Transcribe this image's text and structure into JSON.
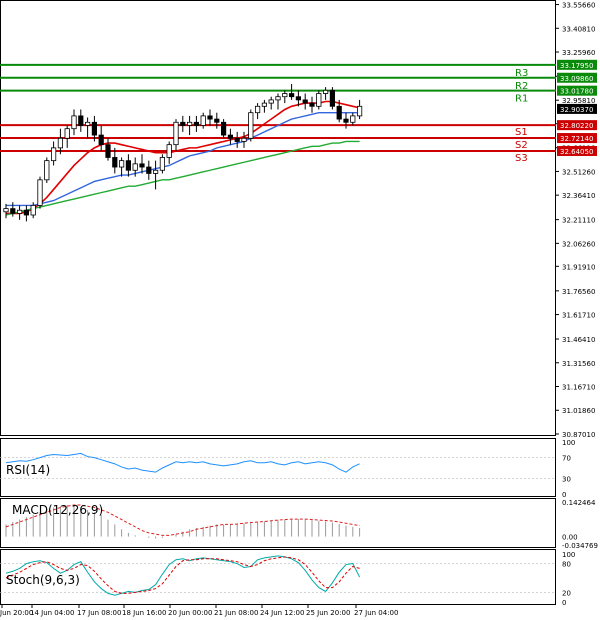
{
  "colors": {
    "up_candle": "#1a8a1a",
    "down_candle": "#d10000",
    "ma_fast": "#e00000",
    "ma_mid": "#3366dd",
    "ma_slow": "#22aa33",
    "resistance": "#0a8a0a",
    "support": "#cc0000",
    "rsi": "#1e90ff",
    "macd_signal": "#dd2222",
    "stoch_main": "#00aaaa",
    "stoch_signal": "#dd0000",
    "frame": "#000000",
    "price_tag_bg": "#000000"
  },
  "chart_data": [
    {
      "type": "candlestick",
      "ylim": [
        30.87,
        33.56
      ],
      "price_ticks": [
        "33.55660",
        "33.40810",
        "33.25960",
        "33.10800",
        "32.95810",
        "32.81120",
        "32.66110",
        "32.51260",
        "32.36410",
        "32.21110",
        "32.06260",
        "31.91910",
        "31.76560",
        "31.61710",
        "31.46410",
        "31.31560",
        "31.16710",
        "31.01860",
        "30.87010"
      ],
      "time_labels": [
        "Jun 20:00",
        "14 Jun 04:00",
        "17 Jun 08:00",
        "18 Jun 16:00",
        "20 Jun 00:00",
        "21 Jun 08:00",
        "24 Jun 12:00",
        "25 Jun 20:00",
        "27 Jun 04:00"
      ],
      "current_price": "32.90370",
      "levels": [
        {
          "name": "R3",
          "value": 33.1795,
          "tag": "33.17950",
          "kind": "resistance"
        },
        {
          "name": "R2",
          "value": 33.0986,
          "tag": "33.09860",
          "kind": "resistance"
        },
        {
          "name": "R1",
          "value": 33.0178,
          "tag": "33.01780",
          "kind": "resistance"
        },
        {
          "name": "S1",
          "value": 32.8022,
          "tag": "32.80220",
          "kind": "support"
        },
        {
          "name": "S2",
          "value": 32.7214,
          "tag": "32.72140",
          "kind": "support"
        },
        {
          "name": "S3",
          "value": 32.6405,
          "tag": "32.64050",
          "kind": "support"
        }
      ],
      "candles": [
        [
          32.26,
          32.31,
          32.22,
          32.28
        ],
        [
          32.28,
          32.32,
          32.23,
          32.25
        ],
        [
          32.25,
          32.3,
          32.21,
          32.27
        ],
        [
          32.27,
          32.3,
          32.2,
          32.24
        ],
        [
          32.24,
          32.32,
          32.22,
          32.3
        ],
        [
          32.3,
          32.48,
          32.28,
          32.46
        ],
        [
          32.46,
          32.6,
          32.44,
          32.58
        ],
        [
          32.58,
          32.7,
          32.55,
          32.66
        ],
        [
          32.66,
          32.78,
          32.62,
          32.72
        ],
        [
          32.72,
          32.8,
          32.66,
          32.78
        ],
        [
          32.78,
          32.9,
          32.74,
          32.86
        ],
        [
          32.86,
          32.9,
          32.76,
          32.8
        ],
        [
          32.8,
          32.85,
          32.72,
          32.82
        ],
        [
          32.82,
          32.86,
          32.7,
          32.74
        ],
        [
          32.74,
          32.8,
          32.64,
          32.68
        ],
        [
          32.68,
          32.72,
          32.58,
          32.6
        ],
        [
          32.6,
          32.66,
          32.5,
          32.54
        ],
        [
          32.54,
          32.6,
          32.48,
          32.58
        ],
        [
          32.58,
          32.62,
          32.48,
          32.52
        ],
        [
          32.52,
          32.6,
          32.48,
          32.56
        ],
        [
          32.56,
          32.62,
          32.5,
          32.54
        ],
        [
          32.54,
          32.58,
          32.46,
          32.5
        ],
        [
          32.5,
          32.58,
          32.4,
          32.52
        ],
        [
          32.52,
          32.62,
          32.5,
          32.6
        ],
        [
          32.6,
          32.7,
          32.56,
          32.68
        ],
        [
          32.68,
          32.84,
          32.64,
          32.82
        ],
        [
          32.82,
          32.86,
          32.76,
          32.8
        ],
        [
          32.8,
          32.86,
          32.74,
          32.82
        ],
        [
          32.82,
          32.86,
          32.76,
          32.8
        ],
        [
          32.8,
          32.88,
          32.78,
          32.86
        ],
        [
          32.86,
          32.9,
          32.8,
          32.84
        ],
        [
          32.84,
          32.88,
          32.78,
          32.82
        ],
        [
          32.82,
          32.84,
          32.72,
          32.74
        ],
        [
          32.74,
          32.78,
          32.68,
          32.72
        ],
        [
          32.72,
          32.76,
          32.66,
          32.7
        ],
        [
          32.7,
          32.76,
          32.66,
          32.72
        ],
        [
          32.72,
          32.9,
          32.7,
          32.88
        ],
        [
          32.88,
          32.94,
          32.84,
          32.92
        ],
        [
          32.92,
          32.96,
          32.88,
          32.94
        ],
        [
          32.94,
          32.98,
          32.9,
          32.96
        ],
        [
          32.96,
          33.0,
          32.9,
          32.98
        ],
        [
          32.98,
          33.02,
          32.94,
          33.0
        ],
        [
          33.0,
          33.06,
          32.96,
          32.98
        ],
        [
          32.98,
          33.02,
          32.92,
          32.96
        ],
        [
          32.96,
          33.0,
          32.9,
          32.94
        ],
        [
          32.94,
          32.98,
          32.88,
          32.92
        ],
        [
          32.92,
          33.02,
          32.9,
          33.0
        ],
        [
          33.0,
          33.04,
          32.96,
          33.02
        ],
        [
          33.02,
          33.04,
          32.9,
          32.92
        ],
        [
          32.92,
          32.96,
          32.82,
          32.84
        ],
        [
          32.84,
          32.88,
          32.78,
          32.82
        ],
        [
          32.82,
          32.88,
          32.8,
          32.86
        ],
        [
          32.86,
          32.96,
          32.84,
          32.92
        ]
      ],
      "ma_fast": [
        32.25,
        32.25,
        32.25,
        32.26,
        32.28,
        32.31,
        32.35,
        32.4,
        32.45,
        32.5,
        32.55,
        32.59,
        32.63,
        32.66,
        32.68,
        32.69,
        32.69,
        32.68,
        32.67,
        32.66,
        32.65,
        32.64,
        32.63,
        32.63,
        32.63,
        32.64,
        32.65,
        32.66,
        32.66,
        32.67,
        32.68,
        32.69,
        32.7,
        32.71,
        32.72,
        32.73,
        32.75,
        32.78,
        32.81,
        32.84,
        32.87,
        32.9,
        32.92,
        32.93,
        32.94,
        32.94,
        32.94,
        32.95,
        32.95,
        32.94,
        32.93,
        32.92,
        32.91
      ],
      "ma_mid": [
        32.3,
        32.3,
        32.3,
        32.3,
        32.3,
        32.31,
        32.32,
        32.33,
        32.35,
        32.37,
        32.39,
        32.41,
        32.43,
        32.45,
        32.46,
        32.47,
        32.48,
        32.49,
        32.49,
        32.5,
        32.51,
        32.52,
        32.53,
        32.54,
        32.55,
        32.57,
        32.59,
        32.61,
        32.62,
        32.63,
        32.64,
        32.66,
        32.67,
        32.68,
        32.69,
        32.7,
        32.72,
        32.74,
        32.76,
        32.78,
        32.8,
        32.82,
        32.84,
        32.85,
        32.86,
        32.87,
        32.88,
        32.88,
        32.88,
        32.88,
        32.88,
        32.88,
        32.88
      ],
      "ma_slow": [
        32.24,
        32.25,
        32.26,
        32.27,
        32.28,
        32.29,
        32.3,
        32.31,
        32.32,
        32.33,
        32.34,
        32.35,
        32.36,
        32.37,
        32.38,
        32.39,
        32.4,
        32.41,
        32.42,
        32.42,
        32.43,
        32.44,
        32.45,
        32.46,
        32.46,
        32.47,
        32.48,
        32.49,
        32.5,
        32.51,
        32.52,
        32.53,
        32.54,
        32.55,
        32.56,
        32.57,
        32.58,
        32.59,
        32.6,
        32.61,
        32.62,
        32.63,
        32.64,
        32.65,
        32.66,
        32.67,
        32.67,
        32.68,
        32.69,
        32.69,
        32.7,
        32.7,
        32.7
      ]
    },
    {
      "type": "line",
      "name": "RSI(14)",
      "ylim": [
        0,
        100
      ],
      "ticks": [
        "100",
        "70",
        "30",
        "0"
      ],
      "values": [
        60,
        62,
        64,
        63,
        66,
        70,
        74,
        76,
        75,
        74,
        76,
        78,
        72,
        70,
        66,
        62,
        58,
        52,
        48,
        50,
        46,
        44,
        42,
        50,
        56,
        62,
        60,
        62,
        60,
        62,
        58,
        56,
        54,
        56,
        58,
        62,
        64,
        60,
        60,
        62,
        58,
        56,
        60,
        62,
        58,
        60,
        62,
        60,
        56,
        48,
        42,
        52,
        58
      ]
    },
    {
      "type": "bar",
      "name": "MACD(12,26,9)",
      "ylim": [
        -0.034769,
        0.142464
      ],
      "ticks": [
        "0.142464",
        "0.00",
        "-0.034769"
      ],
      "histogram": [
        0.05,
        0.06,
        0.07,
        0.08,
        0.09,
        0.1,
        0.11,
        0.12,
        0.125,
        0.13,
        0.13,
        0.12,
        0.11,
        0.1,
        0.09,
        0.07,
        0.05,
        0.03,
        0.015,
        0.005,
        0.0,
        -0.005,
        -0.008,
        -0.005,
        0.0,
        0.01,
        0.02,
        0.03,
        0.035,
        0.04,
        0.045,
        0.05,
        0.05,
        0.052,
        0.052,
        0.055,
        0.058,
        0.06,
        0.062,
        0.065,
        0.068,
        0.07,
        0.07,
        0.072,
        0.07,
        0.068,
        0.065,
        0.062,
        0.058,
        0.052,
        0.045,
        0.04,
        0.035
      ],
      "signal": [
        0.04,
        0.05,
        0.06,
        0.07,
        0.08,
        0.09,
        0.1,
        0.11,
        0.12,
        0.125,
        0.13,
        0.13,
        0.125,
        0.12,
        0.11,
        0.1,
        0.085,
        0.07,
        0.055,
        0.04,
        0.025,
        0.015,
        0.01,
        0.005,
        0.005,
        0.01,
        0.015,
        0.02,
        0.03,
        0.035,
        0.04,
        0.045,
        0.05,
        0.05,
        0.052,
        0.055,
        0.058,
        0.06,
        0.062,
        0.065,
        0.068,
        0.07,
        0.072,
        0.072,
        0.072,
        0.07,
        0.068,
        0.066,
        0.064,
        0.06,
        0.055,
        0.05,
        0.045
      ]
    },
    {
      "type": "line",
      "name": "Stoch(9,6,3)",
      "ylim": [
        0,
        100
      ],
      "ticks": [
        "100",
        "80",
        "20",
        "0"
      ],
      "main": [
        60,
        64,
        70,
        80,
        84,
        86,
        82,
        70,
        60,
        66,
        78,
        84,
        62,
        42,
        28,
        18,
        14,
        18,
        22,
        20,
        24,
        26,
        36,
        58,
        78,
        88,
        90,
        86,
        90,
        92,
        90,
        88,
        86,
        84,
        80,
        72,
        74,
        88,
        92,
        94,
        96,
        94,
        90,
        82,
        66,
        46,
        30,
        22,
        40,
        62,
        78,
        80,
        52
      ],
      "signal": [
        50,
        56,
        62,
        70,
        78,
        82,
        84,
        78,
        70,
        66,
        70,
        78,
        76,
        64,
        48,
        34,
        22,
        18,
        18,
        20,
        22,
        24,
        28,
        38,
        56,
        74,
        86,
        88,
        88,
        90,
        90,
        90,
        88,
        86,
        84,
        78,
        74,
        78,
        86,
        90,
        92,
        94,
        92,
        88,
        78,
        62,
        44,
        30,
        30,
        42,
        60,
        74,
        70
      ]
    }
  ],
  "labels": {
    "rsi": "RSI(14)",
    "macd": "MACD(12,26,9)",
    "stoch": "Stoch(9,6,3)"
  }
}
